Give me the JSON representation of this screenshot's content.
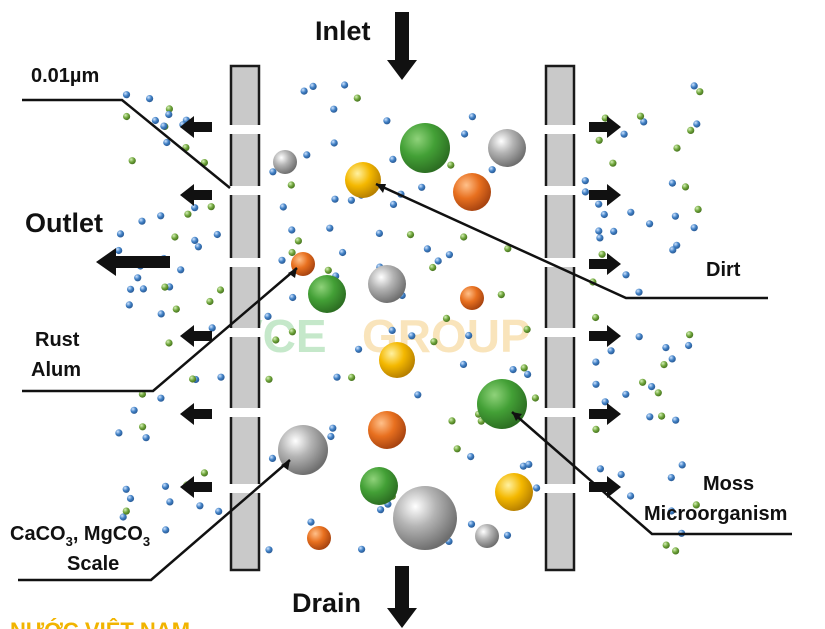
{
  "labels": {
    "inlet": "Inlet",
    "drain": "Drain",
    "outlet": "Outlet",
    "pore_size": "0.01µm",
    "rust_alum_line1": "Rust",
    "rust_alum_line2": "Alum",
    "dirt": "Dirt",
    "moss_line1": "Moss",
    "moss_line2": "Microorganism",
    "scale_line1_a": "CaCO",
    "scale_line1_sub1": "3",
    "scale_line1_b": ", MgCO",
    "scale_line1_sub2": "3",
    "scale_line2": "Scale"
  },
  "watermark": {
    "part1": "VCE",
    "part2": "GROUP",
    "footer": "NƯỚC VIỆT NAM"
  },
  "colors": {
    "membrane_fill": "#c9c9c9",
    "membrane_stroke": "#1a1a1a",
    "water_molecule": "#3f7fc4",
    "small_green": "#6fa53b",
    "green_particle": "#3d9a2e",
    "gray_particle": "#9a9a9a",
    "orange_particle": "#e46a1c",
    "yellow_particle": "#f1b400",
    "watermark_green": "#9fd7a8",
    "watermark_orange": "#f6d28f"
  }
}
